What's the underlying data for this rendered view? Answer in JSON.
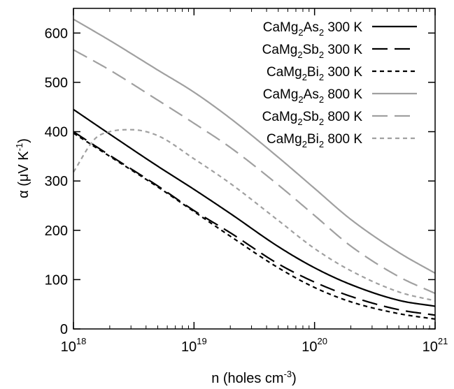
{
  "chart_data": {
    "type": "line",
    "xscale": "log",
    "xlim": [
      1e+18,
      1e+21
    ],
    "ylim": [
      0,
      650
    ],
    "x_ticks": [
      {
        "value": 1e+18,
        "base": "10",
        "exp": "18"
      },
      {
        "value": 1e+19,
        "base": "10",
        "exp": "19"
      },
      {
        "value": 1e+20,
        "base": "10",
        "exp": "20"
      },
      {
        "value": 1e+21,
        "base": "10",
        "exp": "21"
      }
    ],
    "y_ticks": [
      0,
      100,
      200,
      300,
      400,
      500,
      600
    ],
    "xlabel": {
      "main": "n (holes cm",
      "sup": "-3",
      "end": ")"
    },
    "ylabel": {
      "main": "α (μV K",
      "sup": "-1",
      "end": ")"
    },
    "legend_position": "top-right",
    "series": [
      {
        "compound": [
          "CaMg",
          "2",
          "As",
          "2"
        ],
        "temp": "300 K",
        "color": "#000000",
        "dash": "solid",
        "x": [
          1e+18,
          2e+18,
          5e+18,
          1e+19,
          2e+19,
          5e+19,
          1e+20,
          2e+20,
          5e+20,
          1e+21
        ],
        "y": [
          445,
          395,
          330,
          283,
          234,
          167,
          124,
          90,
          58,
          46
        ]
      },
      {
        "compound": [
          "CaMg",
          "2",
          "Sb",
          "2"
        ],
        "temp": "300 K",
        "color": "#000000",
        "dash": "long",
        "x": [
          1e+18,
          2e+18,
          5e+18,
          1e+19,
          2e+19,
          5e+19,
          1e+20,
          2e+20,
          5e+20,
          1e+21
        ],
        "y": [
          400,
          352,
          290,
          240,
          195,
          132,
          95,
          66,
          39,
          28
        ]
      },
      {
        "compound": [
          "CaMg",
          "2",
          "Bi",
          "2"
        ],
        "temp": "300 K",
        "color": "#000000",
        "dash": "short",
        "x": [
          1e+18,
          2e+18,
          5e+18,
          1e+19,
          2e+19,
          5e+19,
          1e+20,
          2e+20,
          5e+20,
          1e+21
        ],
        "y": [
          397,
          350,
          288,
          238,
          188,
          124,
          84,
          55,
          31,
          20
        ]
      },
      {
        "compound": [
          "CaMg",
          "2",
          "As",
          "2"
        ],
        "temp": "800 K",
        "color": "#a0a0a0",
        "dash": "solid",
        "x": [
          1e+18,
          2e+18,
          5e+18,
          1e+19,
          2e+19,
          5e+19,
          1e+20,
          2e+20,
          5e+20,
          1e+21
        ],
        "y": [
          628,
          585,
          525,
          480,
          427,
          348,
          285,
          222,
          155,
          113
        ]
      },
      {
        "compound": [
          "CaMg",
          "2",
          "Sb",
          "2"
        ],
        "temp": "800 K",
        "color": "#a0a0a0",
        "dash": "long",
        "x": [
          1e+18,
          2e+18,
          5e+18,
          1e+19,
          2e+19,
          5e+19,
          1e+20,
          2e+20,
          5e+20,
          1e+21
        ],
        "y": [
          566,
          525,
          464,
          417,
          368,
          292,
          230,
          168,
          106,
          72
        ]
      },
      {
        "compound": [
          "CaMg",
          "2",
          "Bi",
          "2"
        ],
        "temp": "800 K",
        "color": "#a0a0a0",
        "dash": "short",
        "x": [
          1e+18,
          1.5e+18,
          2e+18,
          3e+18,
          5e+18,
          1e+19,
          2e+19,
          5e+19,
          1e+20,
          2e+20,
          5e+20,
          1e+21
        ],
        "y": [
          318,
          385,
          400,
          404,
          392,
          345,
          295,
          220,
          163,
          118,
          75,
          57
        ]
      }
    ]
  }
}
